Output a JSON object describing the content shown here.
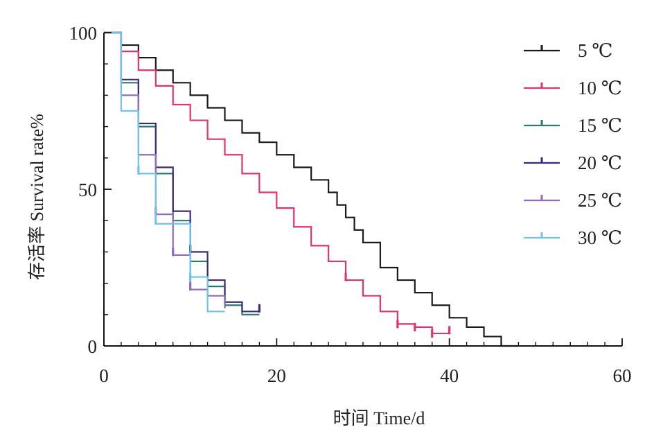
{
  "chart_data": {
    "type": "line",
    "subtype": "step",
    "title": "",
    "xlabel": "时间 Time/d",
    "ylabel": "存活率 Survival rate%",
    "xlim": [
      0,
      60
    ],
    "ylim": [
      0,
      100
    ],
    "x_ticks": [
      0,
      20,
      40,
      60
    ],
    "x_tick_labels": [
      "0",
      "20",
      "40",
      "60"
    ],
    "y_ticks": [
      0,
      50,
      100
    ],
    "y_tick_labels": [
      "0",
      "50",
      "100"
    ],
    "x_minor_step": 2,
    "y_minor_step": 10,
    "grid": false,
    "legend_position": "top-right",
    "series": [
      {
        "name": "5 ℃",
        "color": "#1a1a1a",
        "x": [
          0,
          2,
          4,
          6,
          8,
          10,
          12,
          14,
          16,
          18,
          20,
          22,
          24,
          26,
          27,
          28,
          29,
          30,
          32,
          34,
          36,
          38,
          40,
          42,
          44,
          46,
          48
        ],
        "y": [
          100,
          96,
          92,
          88,
          84,
          80,
          76,
          72,
          68,
          65,
          61,
          57,
          53,
          49,
          45,
          41,
          37,
          33,
          25,
          21,
          17,
          13,
          9,
          6,
          3,
          0,
          0
        ],
        "censored": []
      },
      {
        "name": "10 ℃",
        "color": "#e0336a",
        "x": [
          0,
          2,
          4,
          6,
          8,
          10,
          12,
          14,
          16,
          18,
          20,
          22,
          24,
          26,
          28,
          30,
          32,
          34,
          36,
          38,
          40
        ],
        "y": [
          100,
          94,
          88,
          83,
          77,
          72,
          66,
          61,
          55,
          49,
          44,
          38,
          32,
          27,
          21,
          16,
          11,
          7,
          6,
          4,
          4
        ],
        "censored": [
          [
            28,
            22
          ],
          [
            34,
            7
          ],
          [
            36,
            6
          ],
          [
            38,
            4
          ],
          [
            40,
            5
          ]
        ]
      },
      {
        "name": "15 ℃",
        "color": "#2b7b6b",
        "x": [
          0,
          2,
          4,
          6,
          8,
          10,
          12,
          14,
          16,
          18
        ],
        "y": [
          100,
          84,
          70,
          55,
          40,
          27,
          19,
          13,
          10,
          10
        ],
        "censored": []
      },
      {
        "name": "20 ℃",
        "color": "#3b2b7a",
        "x": [
          0,
          2,
          4,
          6,
          8,
          10,
          12,
          14,
          16,
          18
        ],
        "y": [
          100,
          85,
          71,
          57,
          43,
          30,
          21,
          14,
          11,
          11
        ],
        "censored": [
          [
            10,
            31
          ],
          [
            18,
            12
          ]
        ]
      },
      {
        "name": "25 ℃",
        "color": "#8e6bbd",
        "x": [
          0,
          2,
          4,
          6,
          8,
          10,
          12,
          14
        ],
        "y": [
          100,
          80,
          61,
          42,
          29,
          18,
          16,
          12
        ],
        "censored": [
          [
            6,
            43
          ],
          [
            8,
            30
          ],
          [
            10,
            19
          ]
        ]
      },
      {
        "name": "30 ℃",
        "color": "#6ec3ea",
        "x": [
          0,
          2,
          4,
          6,
          8,
          10,
          12,
          14
        ],
        "y": [
          100,
          75,
          55,
          39,
          39,
          22,
          11,
          11
        ],
        "censored": [
          [
            4,
            56
          ],
          [
            6,
            40
          ],
          [
            10,
            22
          ]
        ]
      }
    ]
  }
}
